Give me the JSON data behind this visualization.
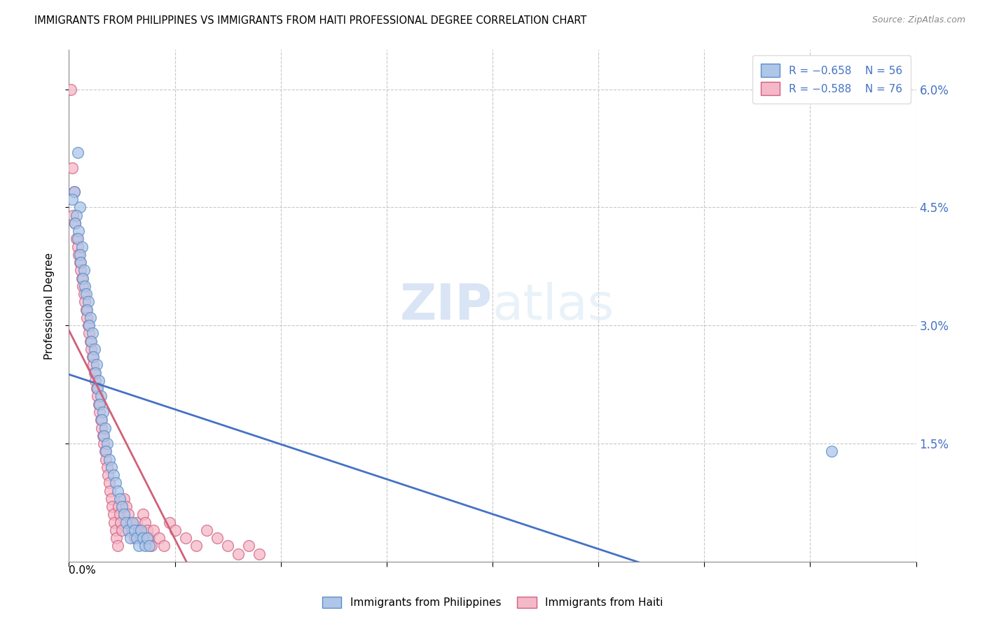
{
  "title": "IMMIGRANTS FROM PHILIPPINES VS IMMIGRANTS FROM HAITI PROFESSIONAL DEGREE CORRELATION CHART",
  "source": "Source: ZipAtlas.com",
  "ylabel": "Professional Degree",
  "right_yticks": [
    "6.0%",
    "4.5%",
    "3.0%",
    "1.5%"
  ],
  "right_ytick_vals": [
    0.06,
    0.045,
    0.03,
    0.015
  ],
  "xmin": 0.0,
  "xmax": 0.8,
  "ymin": 0.0,
  "ymax": 0.065,
  "legend_blue_r": "R = −0.658",
  "legend_blue_n": "N = 56",
  "legend_pink_r": "R = −0.588",
  "legend_pink_n": "N = 76",
  "blue_color": "#aec6e8",
  "pink_color": "#f5b8c8",
  "blue_edge_color": "#5b8cc8",
  "pink_edge_color": "#d06080",
  "blue_line_color": "#4472c4",
  "pink_line_color": "#d0607a",
  "right_axis_color": "#4472c4",
  "watermark_zip": "ZIP",
  "watermark_atlas": "atlas",
  "blue_scatter_x": [
    0.005,
    0.003,
    0.008,
    0.01,
    0.007,
    0.006,
    0.009,
    0.008,
    0.012,
    0.01,
    0.011,
    0.014,
    0.013,
    0.015,
    0.016,
    0.018,
    0.017,
    0.02,
    0.019,
    0.022,
    0.021,
    0.024,
    0.023,
    0.026,
    0.025,
    0.028,
    0.027,
    0.03,
    0.029,
    0.032,
    0.031,
    0.034,
    0.033,
    0.036,
    0.035,
    0.038,
    0.04,
    0.042,
    0.044,
    0.046,
    0.048,
    0.05,
    0.052,
    0.054,
    0.056,
    0.058,
    0.06,
    0.062,
    0.064,
    0.066,
    0.068,
    0.07,
    0.072,
    0.074,
    0.076,
    0.72
  ],
  "blue_scatter_y": [
    0.047,
    0.046,
    0.052,
    0.045,
    0.044,
    0.043,
    0.042,
    0.041,
    0.04,
    0.039,
    0.038,
    0.037,
    0.036,
    0.035,
    0.034,
    0.033,
    0.032,
    0.031,
    0.03,
    0.029,
    0.028,
    0.027,
    0.026,
    0.025,
    0.024,
    0.023,
    0.022,
    0.021,
    0.02,
    0.019,
    0.018,
    0.017,
    0.016,
    0.015,
    0.014,
    0.013,
    0.012,
    0.011,
    0.01,
    0.009,
    0.008,
    0.007,
    0.006,
    0.005,
    0.004,
    0.003,
    0.005,
    0.004,
    0.003,
    0.002,
    0.004,
    0.003,
    0.002,
    0.003,
    0.002,
    0.014
  ],
  "pink_scatter_x": [
    0.002,
    0.003,
    0.004,
    0.005,
    0.006,
    0.007,
    0.008,
    0.009,
    0.01,
    0.011,
    0.012,
    0.013,
    0.014,
    0.015,
    0.016,
    0.017,
    0.018,
    0.019,
    0.02,
    0.021,
    0.022,
    0.023,
    0.024,
    0.025,
    0.026,
    0.027,
    0.028,
    0.029,
    0.03,
    0.031,
    0.032,
    0.033,
    0.034,
    0.035,
    0.036,
    0.037,
    0.038,
    0.039,
    0.04,
    0.041,
    0.042,
    0.043,
    0.044,
    0.045,
    0.046,
    0.047,
    0.048,
    0.049,
    0.05,
    0.052,
    0.054,
    0.056,
    0.058,
    0.06,
    0.062,
    0.064,
    0.066,
    0.068,
    0.07,
    0.072,
    0.074,
    0.076,
    0.078,
    0.08,
    0.085,
    0.09,
    0.095,
    0.1,
    0.11,
    0.12,
    0.13,
    0.14,
    0.15,
    0.16,
    0.17,
    0.18
  ],
  "pink_scatter_y": [
    0.06,
    0.05,
    0.044,
    0.047,
    0.043,
    0.041,
    0.04,
    0.039,
    0.038,
    0.037,
    0.036,
    0.035,
    0.034,
    0.033,
    0.032,
    0.031,
    0.03,
    0.029,
    0.028,
    0.027,
    0.026,
    0.025,
    0.024,
    0.023,
    0.022,
    0.021,
    0.02,
    0.019,
    0.018,
    0.017,
    0.016,
    0.015,
    0.014,
    0.013,
    0.012,
    0.011,
    0.01,
    0.009,
    0.008,
    0.007,
    0.006,
    0.005,
    0.004,
    0.003,
    0.002,
    0.007,
    0.006,
    0.005,
    0.004,
    0.008,
    0.007,
    0.006,
    0.005,
    0.004,
    0.003,
    0.005,
    0.004,
    0.003,
    0.006,
    0.005,
    0.004,
    0.003,
    0.002,
    0.004,
    0.003,
    0.002,
    0.005,
    0.004,
    0.003,
    0.002,
    0.004,
    0.003,
    0.002,
    0.001,
    0.002,
    0.001
  ]
}
